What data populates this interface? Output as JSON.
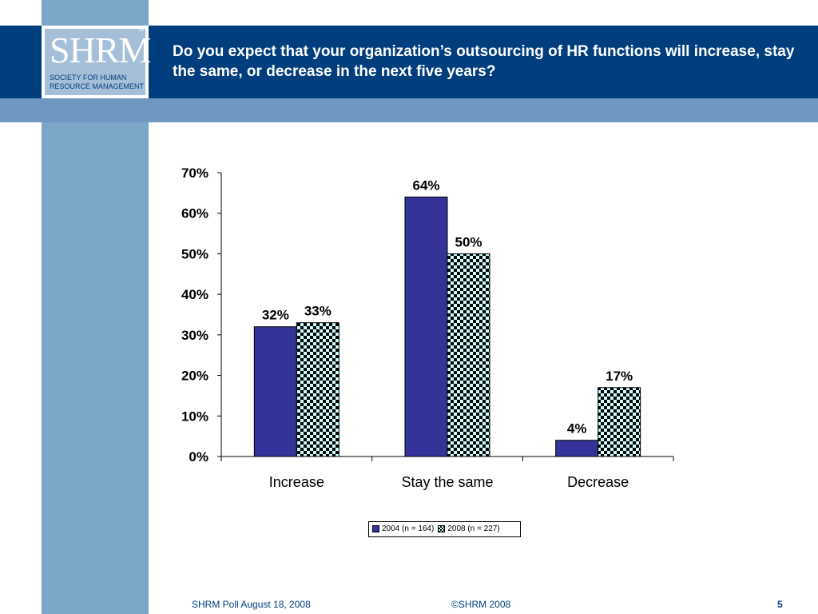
{
  "header": {
    "title": "Do you expect that your organization’s outsourcing of HR functions will increase, stay the same, or decrease in the next five years?"
  },
  "logo": {
    "word": "SHRM",
    "tm": "™",
    "subtitle": "SOCIETY FOR HUMAN RESOURCE MANAGEMENT"
  },
  "footer": {
    "left": "SHRM Poll August 18, 2008",
    "center": "©SHRM 2008",
    "page": "5"
  },
  "colors": {
    "band": "#003e7e",
    "stripe": "#7aa6c8",
    "series_2004": "#333399",
    "series_2008_light": "#ccffff",
    "series_2008_dark": "#000000"
  },
  "chart_data": {
    "type": "bar",
    "categories": [
      "Increase",
      "Stay the same",
      "Decrease"
    ],
    "series": [
      {
        "name": "2004 (n = 164)",
        "values": [
          32,
          64,
          4
        ],
        "labels": [
          "32%",
          "64%",
          "4%"
        ]
      },
      {
        "name": "2008 (n = 227)",
        "values": [
          33,
          50,
          17
        ],
        "labels": [
          "33%",
          "50%",
          "17%"
        ]
      }
    ],
    "ylim": [
      0,
      70
    ],
    "yticks": [
      "0%",
      "10%",
      "20%",
      "30%",
      "40%",
      "50%",
      "60%",
      "70%"
    ],
    "legend_position": "bottom",
    "grid": false
  }
}
